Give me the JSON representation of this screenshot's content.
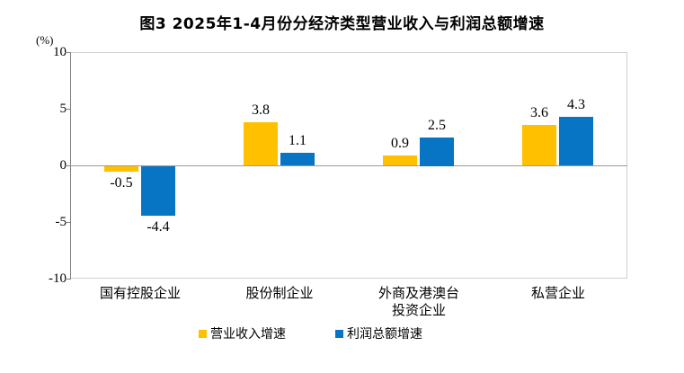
{
  "title": "图3 2025年1-4月份分经济类型营业收入与利润总额增速",
  "y_axis_unit": "(%)",
  "chart_data": {
    "type": "bar",
    "title": "图3 2025年1-4月份分经济类型营业收入与利润总额增速",
    "categories": [
      "国有控股企业",
      "股份制企业",
      "外商及港澳台\n投资企业",
      "私营企业"
    ],
    "series": [
      {
        "name": "营业收入增速",
        "color": "#FFC000",
        "values": [
          -0.5,
          3.8,
          0.9,
          3.6
        ]
      },
      {
        "name": "利润总额增速",
        "color": "#0874C4",
        "values": [
          -4.4,
          1.1,
          2.5,
          4.3
        ]
      }
    ],
    "xlabel": "",
    "ylabel": "(%)",
    "ylim": [
      -10,
      10
    ],
    "yticks": [
      10,
      5,
      0,
      -5,
      -10
    ],
    "grid": "zero-baseline-only",
    "legend_position": "bottom",
    "data_labels": true
  }
}
